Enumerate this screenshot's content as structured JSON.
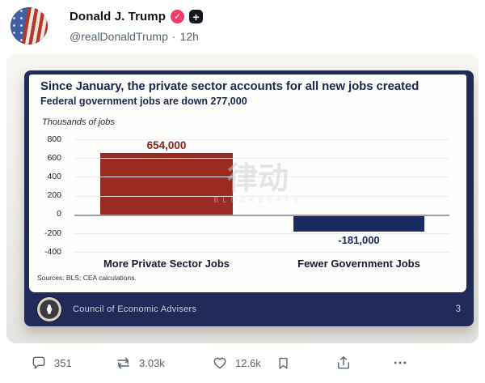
{
  "post": {
    "author": "Donald J. Trump",
    "verified_glyph": "✓",
    "subscribe_glyph": "+",
    "handle": "@realDonaldTrump",
    "separator": "·",
    "timestamp": "12h",
    "actions": {
      "reply_count": "351",
      "repost_count": "3.03k",
      "like_count": "12.6k"
    },
    "icons": {
      "reply": "speech-bubble",
      "repost": "retweet-arrows",
      "like": "heart",
      "bookmark": "bookmark",
      "share": "upload-arrow",
      "more": "ellipsis"
    }
  },
  "slide": {
    "title": "Since January, the private sector accounts for all new jobs created",
    "subtitle": "Federal government jobs are down 277,000",
    "axis_label": "Thousands of jobs",
    "sources": "Sources: BLS; CEA calculations.",
    "footer_org": "Council of Economic Advisers",
    "page_number": "3",
    "watermark_text": "律动",
    "watermark_subtext": "BLOCKBEATS"
  },
  "chart_data": {
    "type": "bar",
    "title": "Since January, the private sector accounts for all new jobs created",
    "subtitle": "Federal government jobs are down 277,000",
    "ylabel": "Thousands of jobs",
    "categories": [
      "More Private Sector Jobs",
      "Fewer Government Jobs"
    ],
    "values": [
      654,
      -181
    ],
    "value_labels": [
      "654,000",
      "-181,000"
    ],
    "bar_colors": [
      "#9b2a22",
      "#1c2a64"
    ],
    "yticks": [
      800,
      600,
      400,
      200,
      0,
      -200,
      -400
    ],
    "ylim": [
      -400,
      800
    ],
    "grid": true,
    "legend": false,
    "source": "Sources: BLS; CEA calculations."
  },
  "colors": {
    "verified_badge": "#ee3e63",
    "frame_navy": "#212a58",
    "bar_red": "#9b2a22",
    "bar_navy": "#1c2a64",
    "action_gray": "#536471"
  }
}
